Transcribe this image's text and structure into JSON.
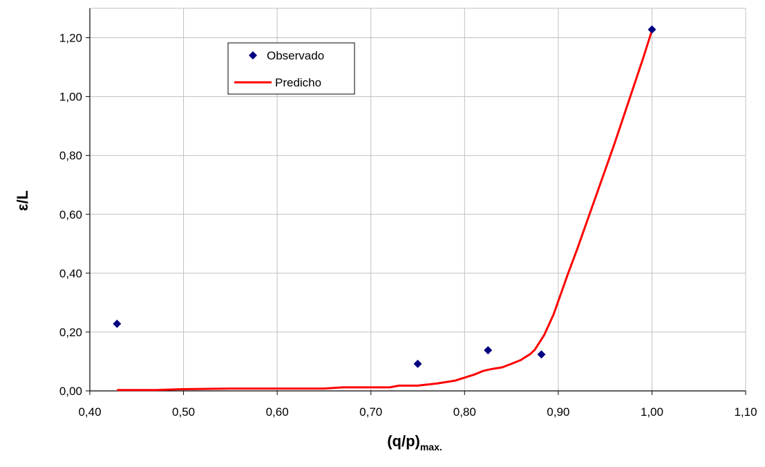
{
  "chart_data": {
    "type": "scatter",
    "title": "",
    "xlabel": "(q/p)",
    "xlabel_subscript": "max.",
    "ylabel": "ε/L",
    "xlim": [
      0.4,
      1.1
    ],
    "ylim": [
      0.0,
      1.3
    ],
    "x_ticks": [
      "0,40",
      "0,50",
      "0,60",
      "0,70",
      "0,80",
      "0,90",
      "1,00",
      "1,10"
    ],
    "y_ticks": [
      "0,00",
      "0,20",
      "0,40",
      "0,60",
      "0,80",
      "1,00",
      "1,20"
    ],
    "x_tick_values": [
      0.4,
      0.5,
      0.6,
      0.7,
      0.8,
      0.9,
      1.0,
      1.1
    ],
    "y_tick_values": [
      0.0,
      0.2,
      0.4,
      0.6,
      0.8,
      1.0,
      1.2
    ],
    "grid": true,
    "legend_position": "top-left",
    "series": [
      {
        "name": "Observado",
        "kind": "marker",
        "marker": "diamond",
        "color": "#000080",
        "x": [
          0.429,
          0.75,
          0.825,
          0.882,
          1.0
        ],
        "y": [
          0.228,
          0.092,
          0.138,
          0.124,
          1.228
        ]
      },
      {
        "name": "Predicho",
        "kind": "line",
        "color": "#ff0000",
        "x": [
          0.429,
          0.47,
          0.5,
          0.55,
          0.6,
          0.65,
          0.67,
          0.7,
          0.72,
          0.73,
          0.75,
          0.77,
          0.79,
          0.8,
          0.81,
          0.82,
          0.83,
          0.84,
          0.85,
          0.86,
          0.87,
          0.875,
          0.88,
          0.885,
          0.89,
          0.895,
          0.9,
          0.905,
          0.91,
          0.92,
          0.93,
          0.94,
          0.95,
          0.96,
          0.97,
          0.98,
          0.99,
          1.0
        ],
        "y": [
          0.003,
          0.003,
          0.006,
          0.008,
          0.008,
          0.008,
          0.012,
          0.012,
          0.012,
          0.018,
          0.018,
          0.025,
          0.035,
          0.045,
          0.055,
          0.068,
          0.075,
          0.08,
          0.092,
          0.105,
          0.125,
          0.14,
          0.165,
          0.19,
          0.225,
          0.26,
          0.305,
          0.35,
          0.395,
          0.48,
          0.57,
          0.66,
          0.75,
          0.84,
          0.935,
          1.03,
          1.125,
          1.225
        ]
      }
    ]
  }
}
